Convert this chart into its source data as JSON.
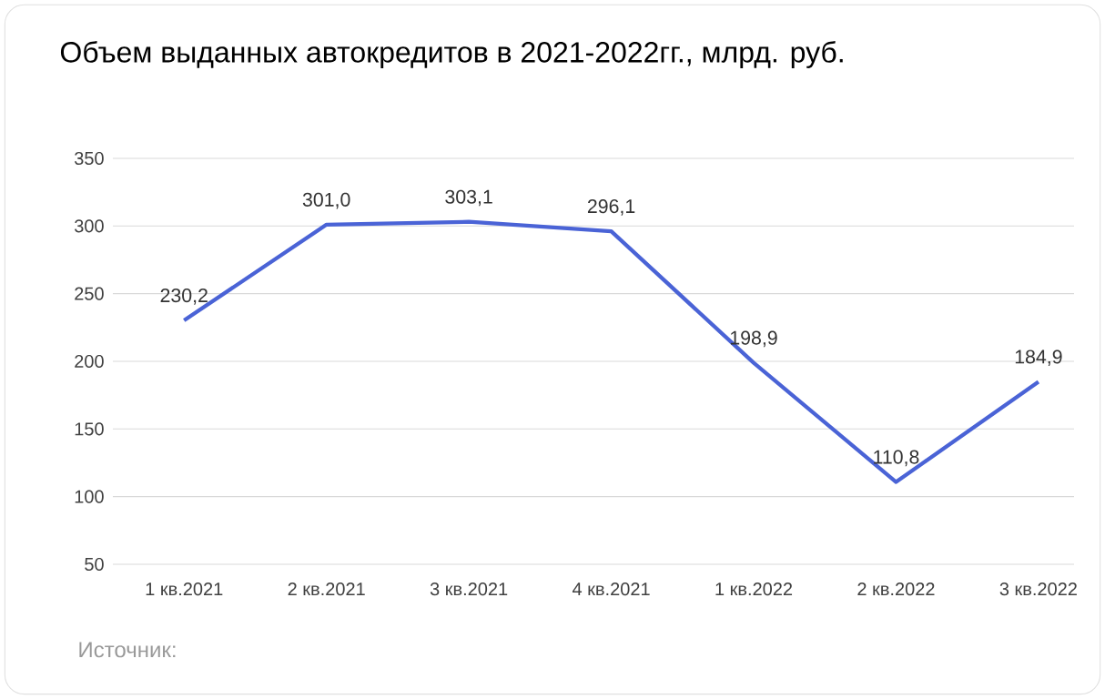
{
  "chart_data": {
    "type": "line",
    "title": "Объем выданных автокредитов в 2021-2022гг., млрд. руб.",
    "categories": [
      "1 кв.2021",
      "2 кв.2021",
      "3 кв.2021",
      "4 кв.2021",
      "1 кв.2022",
      "2 кв.2022",
      "3 кв.2022"
    ],
    "series": [
      {
        "color": "#4a63d6",
        "values": [
          230.2,
          301.0,
          303.1,
          296.1,
          198.9,
          110.8,
          184.9
        ],
        "value_labels": [
          "230,2",
          "301,0",
          "303,1",
          "296,1",
          "198,9",
          "110,8",
          "184,9"
        ]
      }
    ],
    "ylim": [
      50,
      350
    ],
    "yticks": [
      50,
      100,
      150,
      200,
      250,
      300,
      350
    ],
    "grid": "y",
    "marker": "none",
    "line_style": "solid",
    "annotations": [
      "Источник:"
    ]
  }
}
